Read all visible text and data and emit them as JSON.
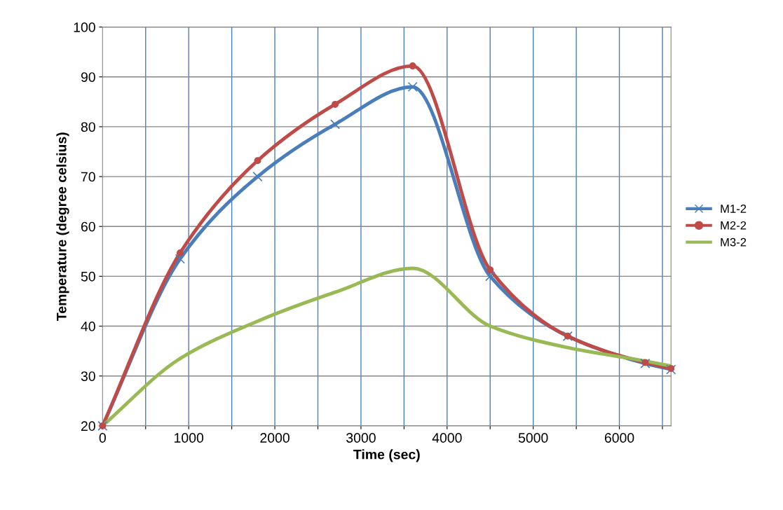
{
  "chart_data": {
    "type": "line",
    "xlabel": "Time (sec)",
    "ylabel": "Temperature (degree celsius)",
    "x": [
      0,
      900,
      1800,
      2700,
      3600,
      4500,
      5400,
      6300,
      6600
    ],
    "series": [
      {
        "name": "M1-2",
        "color": "#4a7ebb",
        "marker": "cross",
        "values": [
          20,
          53.5,
          70,
          80.5,
          88,
          50,
          38,
          32.5,
          31.3
        ]
      },
      {
        "name": "M2-2",
        "color": "#be4b48",
        "marker": "circle",
        "values": [
          20,
          54.7,
          73.2,
          84.5,
          92.2,
          51.3,
          38,
          32.7,
          31.5
        ]
      },
      {
        "name": "M3-2",
        "color": "#98b954",
        "marker": "none",
        "values": [
          20,
          33.5,
          41,
          46.8,
          51.6,
          40,
          35.7,
          33,
          32
        ]
      }
    ],
    "xlim": [
      0,
      6600
    ],
    "xticks": [
      0,
      {
        "value": 500,
        "label": null
      },
      1000,
      {
        "value": 1500,
        "label": null
      },
      2000,
      {
        "value": 2500,
        "label": null
      },
      3000,
      {
        "value": 3500,
        "label": null
      },
      4000,
      {
        "value": 4500,
        "label": null
      },
      5000,
      {
        "value": 5500,
        "label": null
      },
      6000,
      {
        "value": 6500,
        "label": null
      }
    ],
    "ylim": [
      20,
      100
    ],
    "yticks": [
      20,
      30,
      40,
      50,
      60,
      70,
      80,
      90,
      100
    ],
    "grid": true,
    "legend": "right",
    "line_style": "solid"
  }
}
